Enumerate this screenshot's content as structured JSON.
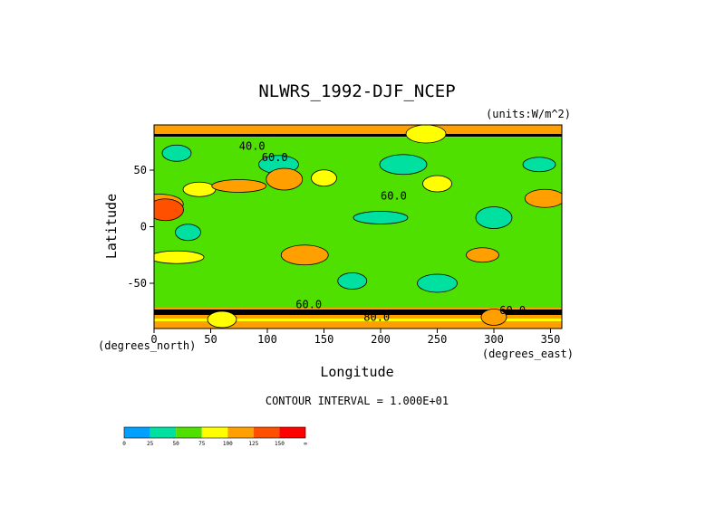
{
  "chart_data": {
    "type": "heatmap",
    "title": "NLWRS_1992-DJF_NCEP",
    "units_note": "(units:W/m^2)",
    "xlabel": "Longitude",
    "ylabel": "Latitude",
    "x_unit_note": "(degrees_east)",
    "y_unit_note": "(degrees_north)",
    "xlim": [
      0,
      360
    ],
    "ylim": [
      -90,
      90
    ],
    "x_ticks": [
      0,
      50,
      100,
      150,
      200,
      250,
      300,
      350
    ],
    "y_ticks": [
      -50,
      0,
      50
    ],
    "contour_interval_text": "CONTOUR INTERVAL = 1.000E+01",
    "contour_labels": [
      "40.0",
      "60.0",
      "60.0",
      "60.0",
      "60.0",
      "80.0"
    ],
    "colorbar": {
      "levels": [
        "0",
        "25",
        "50",
        "75",
        "100",
        "125",
        "150",
        "∞"
      ],
      "colors": [
        "#00a0ff",
        "#00e0a0",
        "#50e000",
        "#ffff00",
        "#ffa000",
        "#ff5000",
        "#ff0000"
      ]
    },
    "field_classes": {
      "base_level": 50,
      "blobs": [
        {
          "lon": 20,
          "lat": 65,
          "level": 25
        },
        {
          "lon": 110,
          "lat": 55,
          "level": 25
        },
        {
          "lon": 220,
          "lat": 55,
          "level": 25
        },
        {
          "lon": 340,
          "lat": 55,
          "level": 25
        },
        {
          "lon": 200,
          "lat": 8,
          "level": 25
        },
        {
          "lon": 300,
          "lat": 8,
          "level": 25
        },
        {
          "lon": 30,
          "lat": -5,
          "level": 25
        },
        {
          "lon": 175,
          "lat": -48,
          "level": 25
        },
        {
          "lon": 250,
          "lat": -50,
          "level": 25
        },
        {
          "lon": 5,
          "lat": 20,
          "level": 100
        },
        {
          "lon": 40,
          "lat": 33,
          "level": 75
        },
        {
          "lon": 75,
          "lat": 36,
          "level": 100
        },
        {
          "lon": 115,
          "lat": 42,
          "level": 100
        },
        {
          "lon": 150,
          "lat": 43,
          "level": 75
        },
        {
          "lon": 250,
          "lat": 38,
          "level": 75
        },
        {
          "lon": 345,
          "lat": 25,
          "level": 100
        },
        {
          "lon": 133,
          "lat": -25,
          "level": 100
        },
        {
          "lon": 290,
          "lat": -25,
          "level": 100
        },
        {
          "lon": 20,
          "lat": -27,
          "level": 75
        },
        {
          "lon": 10,
          "lat": 15,
          "level": 125
        },
        {
          "lon": 300,
          "lat": -80,
          "level": 100
        },
        {
          "lon": 60,
          "lat": -82,
          "level": 75
        },
        {
          "lon": 240,
          "lat": 82,
          "level": 75
        }
      ]
    }
  }
}
